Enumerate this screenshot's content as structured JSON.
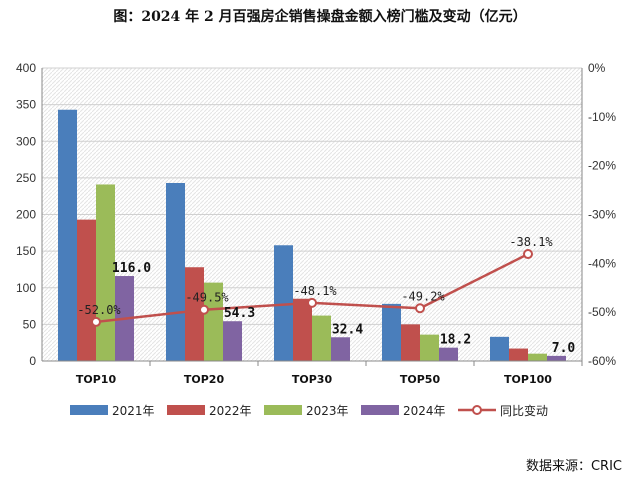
{
  "chart_data": {
    "type": "bar",
    "title": "图：2024 年 2 月百强房企销售操盘金额入榜门槛及变动（亿元）",
    "categories": [
      "TOP10",
      "TOP20",
      "TOP30",
      "TOP50",
      "TOP100"
    ],
    "series": [
      {
        "name": "2021年",
        "type": "bar",
        "axis": "left",
        "color": "#4a7ebb",
        "values": [
          343,
          243,
          158,
          78,
          33
        ]
      },
      {
        "name": "2022年",
        "type": "bar",
        "axis": "left",
        "color": "#c0504d",
        "values": [
          193,
          128,
          85,
          50,
          17
        ]
      },
      {
        "name": "2023年",
        "type": "bar",
        "axis": "left",
        "color": "#9bbb59",
        "values": [
          241,
          107,
          62,
          36,
          10
        ]
      },
      {
        "name": "2024年",
        "type": "bar",
        "axis": "left",
        "color": "#8064a2",
        "values": [
          116.0,
          54.3,
          32.4,
          18.2,
          7.0
        ],
        "labels": [
          "116.0",
          "54.3",
          "32.4",
          "18.2",
          "7.0"
        ]
      },
      {
        "name": "同比变动",
        "type": "line",
        "axis": "right",
        "color": "#c0504d",
        "values": [
          -52.0,
          -49.5,
          -48.1,
          -49.2,
          -38.1
        ],
        "labels": [
          "-52.0%",
          "-49.5%",
          "-48.1%",
          "-49.2%",
          "-38.1%"
        ]
      }
    ],
    "y_left": {
      "min": 0,
      "max": 400,
      "ticks": [
        "0",
        "50",
        "100",
        "150",
        "200",
        "250",
        "300",
        "350",
        "400"
      ]
    },
    "y_right": {
      "min": -60,
      "max": 0,
      "ticks": [
        "0%",
        "-10%",
        "-20%",
        "-30%",
        "-40%",
        "-50%",
        "-60%"
      ]
    },
    "grid": true,
    "legend_position": "bottom"
  },
  "source": "数据来源：CRIC"
}
